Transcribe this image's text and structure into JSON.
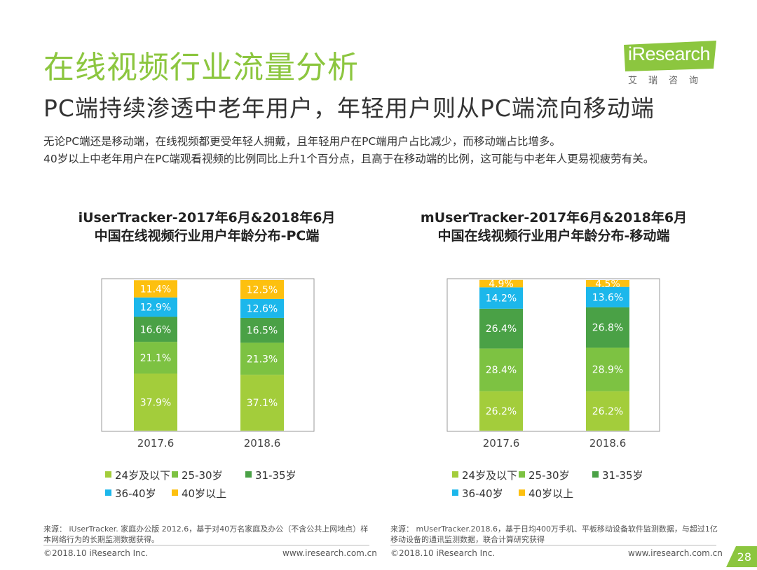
{
  "header": {
    "title": "在线视频行业流量分析",
    "subtitle": "PC端持续渗透中老年用户，年轻用户则从PC端流向移动端",
    "body_lines": [
      "无论PC端还是移动端，在线视频都更受年轻人拥戴，且年轻用户在PC端用户占比减少，而移动端占比增多。",
      "40岁以上中老年用户在PC端观看视频的比例同比上升1个百分点，且高于在移动端的比例，这可能与中老年人更易视疲劳有关。"
    ]
  },
  "logo": {
    "text": "iResearch",
    "sub": "艾瑞咨询"
  },
  "colors": {
    "green_title": "#8cc63f",
    "s1": "#a3cd3b",
    "s2": "#7dc242",
    "s3": "#4aa146",
    "s4": "#1cb7eb",
    "s5": "#fdc00f"
  },
  "chart_data": [
    {
      "type": "bar",
      "stacked": true,
      "title_line1": "iUserTracker-2017年6月&2018年6月",
      "title_line2": "中国在线视频行业用户年龄分布-PC端",
      "categories": [
        "2017.6",
        "2018.6"
      ],
      "series": [
        {
          "name": "24岁及以下",
          "values": [
            37.9,
            37.1
          ],
          "labels": [
            "37.9%",
            "37.1%"
          ]
        },
        {
          "name": "25-30岁",
          "values": [
            21.1,
            21.3
          ],
          "labels": [
            "21.1%",
            "21.3%"
          ]
        },
        {
          "name": "31-35岁",
          "values": [
            16.6,
            16.5
          ],
          "labels": [
            "16.6%",
            "16.5%"
          ]
        },
        {
          "name": "36-40岁",
          "values": [
            12.9,
            12.6
          ],
          "labels": [
            "12.9%",
            "12.6%"
          ]
        },
        {
          "name": "40岁以上",
          "values": [
            11.4,
            12.5
          ],
          "labels": [
            "11.4%",
            "12.5%"
          ]
        }
      ],
      "ylim": [
        0,
        100
      ],
      "legend_position": "bottom",
      "grid": false
    },
    {
      "type": "bar",
      "stacked": true,
      "title_line1": "mUserTracker-2017年6月&2018年6月",
      "title_line2": "中国在线视频行业用户年龄分布-移动端",
      "categories": [
        "2017.6",
        "2018.6"
      ],
      "series": [
        {
          "name": "24岁及以下",
          "values": [
            26.2,
            26.2
          ],
          "labels": [
            "26.2%",
            "26.2%"
          ]
        },
        {
          "name": "25-30岁",
          "values": [
            28.4,
            28.9
          ],
          "labels": [
            "28.4%",
            "28.9%"
          ]
        },
        {
          "name": "31-35岁",
          "values": [
            26.4,
            26.8
          ],
          "labels": [
            "26.4%",
            "26.8%"
          ]
        },
        {
          "name": "36-40岁",
          "values": [
            14.2,
            13.6
          ],
          "labels": [
            "14.2%",
            "13.6%"
          ]
        },
        {
          "name": "40岁以上",
          "values": [
            4.9,
            4.5
          ],
          "labels": [
            "4.9%",
            "4.5%"
          ]
        }
      ],
      "ylim": [
        0,
        100
      ],
      "legend_position": "bottom",
      "grid": false
    }
  ],
  "sources": [
    "来源： iUserTracker. 家庭办公版 2012.6，基于对40万名家庭及办公（不含公共上网地点）样本网络行为的长期监测数据获得。",
    "来源： mUserTracker.2018.6，基于日均400万手机、平板移动设备软件监测数据，与超过1亿移动设备的通讯监测数据，联合计算研究获得"
  ],
  "footer": {
    "copyright": "©2018.10 iResearch Inc.",
    "url": "www.iresearch.com.cn",
    "page": "28"
  }
}
